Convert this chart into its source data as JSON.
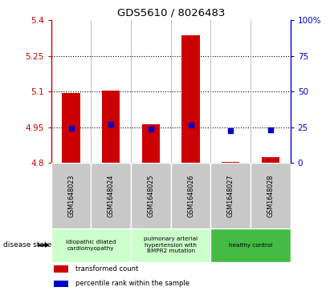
{
  "title": "GDS5610 / 8026483",
  "samples": [
    "GSM1648023",
    "GSM1648024",
    "GSM1648025",
    "GSM1648026",
    "GSM1648027",
    "GSM1648028"
  ],
  "transformed_counts": [
    5.093,
    5.103,
    4.963,
    5.338,
    4.805,
    4.825
  ],
  "percentile_ranks": [
    24.5,
    27.0,
    24.0,
    26.5,
    22.5,
    23.0
  ],
  "ylim_left": [
    4.8,
    5.4
  ],
  "ylim_right": [
    0,
    100
  ],
  "yticks_left": [
    4.8,
    4.95,
    5.1,
    5.25,
    5.4
  ],
  "ytick_labels_left": [
    "4.8",
    "4.95",
    "5.1",
    "5.25",
    "5.4"
  ],
  "yticks_right": [
    0,
    25,
    50,
    75,
    100
  ],
  "ytick_labels_right": [
    "0",
    "25",
    "50",
    "75",
    "100%"
  ],
  "grid_ticks": [
    4.95,
    5.1,
    5.25
  ],
  "bar_bottom": 4.8,
  "bar_color": "#cc0000",
  "dot_color": "#0000cc",
  "group_ranges": [
    [
      0,
      2
    ],
    [
      2,
      4
    ],
    [
      4,
      6
    ]
  ],
  "group_labels": [
    "idiopathic dilated\ncardiomyopathy",
    "pulmonary arterial\nhypertension with\nBMPR2 mutation",
    "healthy control"
  ],
  "group_bgs": [
    "#ccffcc",
    "#ccffcc",
    "#44bb44"
  ],
  "legend_labels": [
    "transformed count",
    "percentile rank within the sample"
  ],
  "legend_colors": [
    "#cc0000",
    "#0000cc"
  ],
  "disease_state_label": "disease state",
  "tick_label_color_left": "#cc0000",
  "tick_label_color_right": "#0000cc",
  "bar_width": 0.45
}
